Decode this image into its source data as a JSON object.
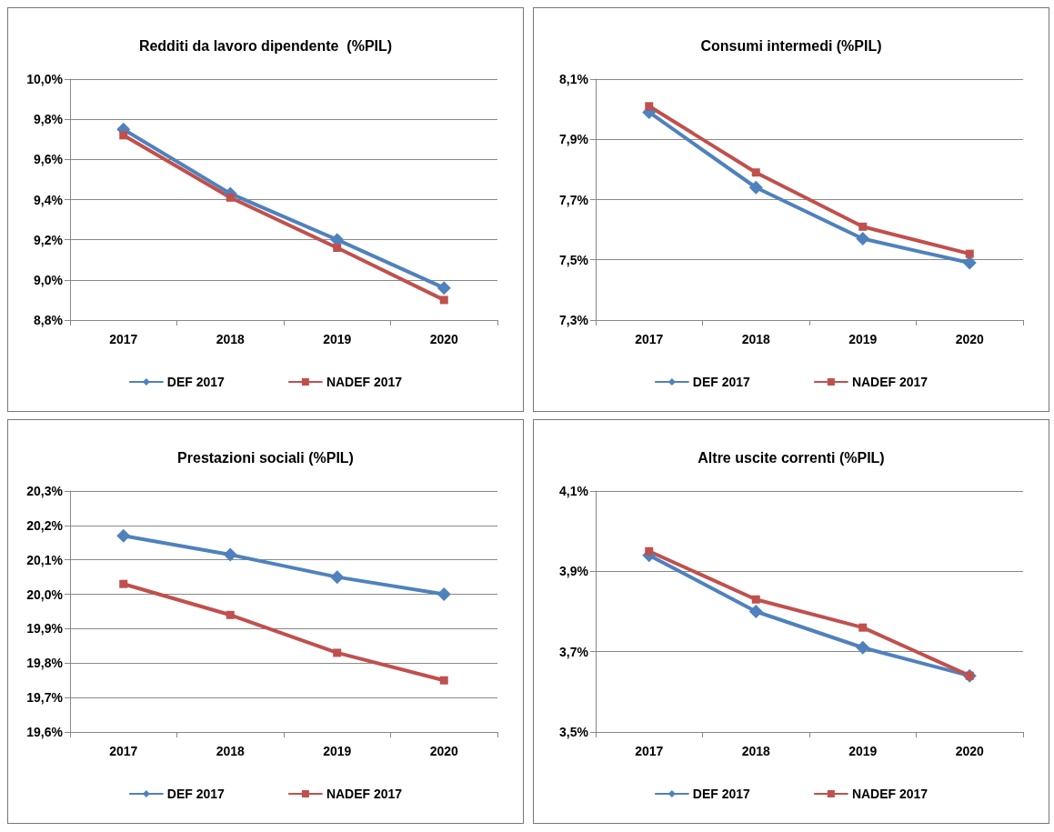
{
  "chart_data": [
    {
      "type": "line",
      "title": "Redditi da lavoro dipendente  (%PIL)",
      "categories": [
        "2017",
        "2018",
        "2019",
        "2020"
      ],
      "ylim": [
        8.8,
        10.0
      ],
      "yticks": [
        {
          "value": 8.8,
          "label": "8,8%"
        },
        {
          "value": 9.0,
          "label": "9,0%"
        },
        {
          "value": 9.2,
          "label": "9,2%"
        },
        {
          "value": 9.4,
          "label": "9,4%"
        },
        {
          "value": 9.6,
          "label": "9,6%"
        },
        {
          "value": 9.8,
          "label": "9,8%"
        },
        {
          "value": 10.0,
          "label": "10,0%"
        }
      ],
      "grid": "y",
      "legend": "bottom",
      "series": [
        {
          "name": "DEF 2017",
          "color": "#4f81bd",
          "marker": "diamond",
          "values": [
            9.75,
            9.43,
            9.2,
            8.96
          ]
        },
        {
          "name": "NADEF 2017",
          "color": "#c0504d",
          "marker": "square",
          "values": [
            9.72,
            9.41,
            9.16,
            8.9
          ]
        }
      ]
    },
    {
      "type": "line",
      "title": "Consumi intermedi (%PIL)",
      "categories": [
        "2017",
        "2018",
        "2019",
        "2020"
      ],
      "ylim": [
        7.3,
        8.1
      ],
      "yticks": [
        {
          "value": 7.3,
          "label": "7,3%"
        },
        {
          "value": 7.5,
          "label": "7,5%"
        },
        {
          "value": 7.7,
          "label": "7,7%"
        },
        {
          "value": 7.9,
          "label": "7,9%"
        },
        {
          "value": 8.1,
          "label": "8,1%"
        }
      ],
      "grid": "y",
      "legend": "bottom",
      "series": [
        {
          "name": "DEF 2017",
          "color": "#4f81bd",
          "marker": "diamond",
          "values": [
            7.99,
            7.74,
            7.57,
            7.49
          ]
        },
        {
          "name": "NADEF 2017",
          "color": "#c0504d",
          "marker": "square",
          "values": [
            8.01,
            7.79,
            7.61,
            7.52
          ]
        }
      ]
    },
    {
      "type": "line",
      "title": "Prestazioni sociali (%PIL)",
      "categories": [
        "2017",
        "2018",
        "2019",
        "2020"
      ],
      "ylim": [
        19.6,
        20.3
      ],
      "yticks": [
        {
          "value": 19.6,
          "label": "19,6%"
        },
        {
          "value": 19.7,
          "label": "19,7%"
        },
        {
          "value": 19.8,
          "label": "19,8%"
        },
        {
          "value": 19.9,
          "label": "19,9%"
        },
        {
          "value": 20.0,
          "label": "20,0%"
        },
        {
          "value": 20.1,
          "label": "20,1%"
        },
        {
          "value": 20.2,
          "label": "20,2%"
        },
        {
          "value": 20.3,
          "label": "20,3%"
        }
      ],
      "grid": "y",
      "legend": "bottom",
      "series": [
        {
          "name": "DEF 2017",
          "color": "#4f81bd",
          "marker": "diamond",
          "values": [
            20.17,
            20.115,
            20.05,
            20.0
          ]
        },
        {
          "name": "NADEF 2017",
          "color": "#c0504d",
          "marker": "square",
          "values": [
            20.03,
            19.94,
            19.83,
            19.75
          ]
        }
      ]
    },
    {
      "type": "line",
      "title": "Altre uscite correnti (%PIL)",
      "categories": [
        "2017",
        "2018",
        "2019",
        "2020"
      ],
      "ylim": [
        3.5,
        4.1
      ],
      "yticks": [
        {
          "value": 3.5,
          "label": "3,5%"
        },
        {
          "value": 3.7,
          "label": "3,7%"
        },
        {
          "value": 3.9,
          "label": "3,9%"
        },
        {
          "value": 4.1,
          "label": "4,1%"
        }
      ],
      "grid": "y",
      "legend": "bottom",
      "series": [
        {
          "name": "DEF 2017",
          "color": "#4f81bd",
          "marker": "diamond",
          "values": [
            3.94,
            3.8,
            3.71,
            3.64
          ]
        },
        {
          "name": "NADEF 2017",
          "color": "#c0504d",
          "marker": "square",
          "values": [
            3.95,
            3.83,
            3.76,
            3.64
          ]
        }
      ]
    }
  ]
}
